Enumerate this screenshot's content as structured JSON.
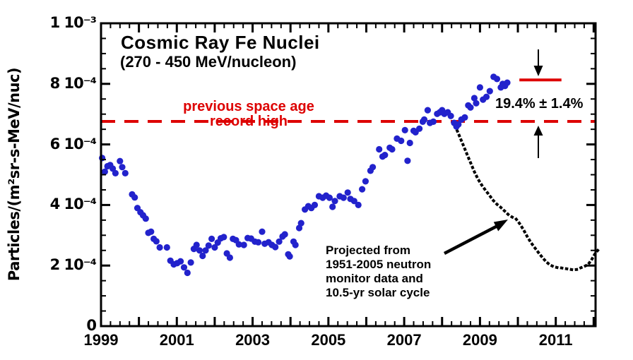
{
  "header": {
    "title": "Cosmic Ray Fe Nuclei",
    "subtitle": "(270 - 450 MeV/nucleon)"
  },
  "annotations": {
    "record_label_line1": "previous space age",
    "record_label_line2": "record high",
    "percent_label": "19.4% ± 1.4%",
    "projection_note_lines": [
      "Projected from",
      "1951-2005 neutron",
      "monitor data and",
      "10.5-yr solar cycle"
    ]
  },
  "colors": {
    "measured_points": "#2222cc",
    "reference_red": "#dd0000",
    "projection_black": "#000000",
    "background": "#ffffff"
  },
  "chart_data": {
    "type": "scatter",
    "title": "Cosmic Ray Fe Nuclei",
    "subtitle": "(270 - 450 MeV/nucleon)",
    "xlabel": "",
    "ylabel": "Particles/(m²sr-s-MeV/nuc)",
    "y_units": "values in 10⁻⁴ particles/(m²·sr·s·MeV/nuc)",
    "xlim": [
      1999,
      2012.05
    ],
    "ylim": [
      0,
      10
    ],
    "grid": false,
    "legend": false,
    "tick_style": "inward ticks on all four sides; x minor every 0.25 yr, major every year; y minor every 0.5, major every 2",
    "x_tick_labels": [
      {
        "year": 1999,
        "label": "1999"
      },
      {
        "year": 2001,
        "label": "2001"
      },
      {
        "year": 2003,
        "label": "2003"
      },
      {
        "year": 2005,
        "label": "2005"
      },
      {
        "year": 2007,
        "label": "2007"
      },
      {
        "year": 2009,
        "label": "2009"
      },
      {
        "year": 2011,
        "label": "2011"
      }
    ],
    "y_ticks": [
      {
        "v": 10,
        "label": "1 10⁻³"
      },
      {
        "v": 8,
        "label": "8 10⁻⁴"
      },
      {
        "v": 6,
        "label": "6 10⁻⁴"
      },
      {
        "v": 4,
        "label": "4 10⁻⁴"
      },
      {
        "v": 2,
        "label": "2 10⁻⁴"
      },
      {
        "v": 0,
        "label": "0"
      }
    ],
    "series": [
      {
        "name": "measured-fe-nuclei-flux",
        "style": "points",
        "color": "#2222cc",
        "marker_radius_px": 4.6,
        "points": [
          [
            1999.03,
            5.55
          ],
          [
            1999.1,
            5.1
          ],
          [
            1999.17,
            5.28
          ],
          [
            1999.24,
            5.32
          ],
          [
            1999.31,
            5.2
          ],
          [
            1999.38,
            5.05
          ],
          [
            1999.5,
            5.45
          ],
          [
            1999.56,
            5.25
          ],
          [
            1999.64,
            5.05
          ],
          [
            1999.82,
            4.35
          ],
          [
            1999.89,
            4.25
          ],
          [
            1999.96,
            3.9
          ],
          [
            2000.04,
            3.76
          ],
          [
            2000.11,
            3.66
          ],
          [
            2000.18,
            3.55
          ],
          [
            2000.25,
            3.08
          ],
          [
            2000.32,
            3.12
          ],
          [
            2000.39,
            2.88
          ],
          [
            2000.46,
            2.8
          ],
          [
            2000.55,
            2.6
          ],
          [
            2000.74,
            2.6
          ],
          [
            2000.83,
            2.16
          ],
          [
            2000.92,
            2.04
          ],
          [
            2001.01,
            2.08
          ],
          [
            2001.1,
            2.14
          ],
          [
            2001.19,
            1.94
          ],
          [
            2001.28,
            1.76
          ],
          [
            2001.37,
            2.1
          ],
          [
            2001.45,
            2.55
          ],
          [
            2001.52,
            2.68
          ],
          [
            2001.6,
            2.5
          ],
          [
            2001.68,
            2.32
          ],
          [
            2001.76,
            2.5
          ],
          [
            2001.84,
            2.66
          ],
          [
            2001.92,
            2.88
          ],
          [
            2002.0,
            2.6
          ],
          [
            2002.08,
            2.76
          ],
          [
            2002.16,
            2.9
          ],
          [
            2002.24,
            2.94
          ],
          [
            2002.32,
            2.4
          ],
          [
            2002.4,
            2.26
          ],
          [
            2002.48,
            2.88
          ],
          [
            2002.56,
            2.84
          ],
          [
            2002.64,
            2.7
          ],
          [
            2002.77,
            2.68
          ],
          [
            2002.87,
            2.91
          ],
          [
            2002.96,
            2.89
          ],
          [
            2003.06,
            2.79
          ],
          [
            2003.15,
            2.77
          ],
          [
            2003.25,
            3.12
          ],
          [
            2003.32,
            2.72
          ],
          [
            2003.42,
            2.77
          ],
          [
            2003.51,
            2.68
          ],
          [
            2003.6,
            2.61
          ],
          [
            2003.7,
            2.79
          ],
          [
            2003.79,
            2.96
          ],
          [
            2003.85,
            3.03
          ],
          [
            2003.94,
            2.37
          ],
          [
            2003.98,
            2.3
          ],
          [
            2004.08,
            2.79
          ],
          [
            2004.13,
            2.68
          ],
          [
            2004.23,
            3.24
          ],
          [
            2004.28,
            3.4
          ],
          [
            2004.38,
            3.85
          ],
          [
            2004.47,
            3.96
          ],
          [
            2004.55,
            3.9
          ],
          [
            2004.64,
            4.0
          ],
          [
            2004.75,
            4.29
          ],
          [
            2004.85,
            4.24
          ],
          [
            2004.94,
            4.31
          ],
          [
            2005.03,
            4.24
          ],
          [
            2005.11,
            3.94
          ],
          [
            2005.17,
            4.13
          ],
          [
            2005.3,
            4.29
          ],
          [
            2005.4,
            4.24
          ],
          [
            2005.51,
            4.41
          ],
          [
            2005.58,
            4.2
          ],
          [
            2005.68,
            4.13
          ],
          [
            2005.79,
            4.0
          ],
          [
            2005.89,
            4.52
          ],
          [
            2005.98,
            4.78
          ],
          [
            2006.11,
            5.13
          ],
          [
            2006.17,
            5.25
          ],
          [
            2006.34,
            5.84
          ],
          [
            2006.43,
            5.6
          ],
          [
            2006.49,
            5.65
          ],
          [
            2006.62,
            5.89
          ],
          [
            2006.68,
            5.84
          ],
          [
            2006.81,
            6.19
          ],
          [
            2006.92,
            6.12
          ],
          [
            2007.02,
            6.47
          ],
          [
            2007.09,
            5.46
          ],
          [
            2007.15,
            6.05
          ],
          [
            2007.25,
            6.45
          ],
          [
            2007.3,
            6.4
          ],
          [
            2007.4,
            6.52
          ],
          [
            2007.49,
            6.75
          ],
          [
            2007.53,
            6.82
          ],
          [
            2007.62,
            7.13
          ],
          [
            2007.68,
            6.71
          ],
          [
            2007.77,
            6.75
          ],
          [
            2007.87,
            7.01
          ],
          [
            2007.94,
            7.06
          ],
          [
            2008.0,
            7.13
          ],
          [
            2008.06,
            7.01
          ],
          [
            2008.15,
            7.06
          ],
          [
            2008.23,
            6.94
          ],
          [
            2008.32,
            6.71
          ],
          [
            2008.38,
            6.59
          ],
          [
            2008.43,
            6.66
          ],
          [
            2008.51,
            6.82
          ],
          [
            2008.6,
            6.89
          ],
          [
            2008.69,
            7.29
          ],
          [
            2008.75,
            7.22
          ],
          [
            2008.85,
            7.53
          ],
          [
            2008.9,
            7.36
          ],
          [
            2009.0,
            7.88
          ],
          [
            2009.08,
            7.48
          ],
          [
            2009.17,
            7.57
          ],
          [
            2009.26,
            7.76
          ],
          [
            2009.36,
            8.23
          ],
          [
            2009.45,
            8.16
          ],
          [
            2009.55,
            7.88
          ],
          [
            2009.6,
            8.0
          ],
          [
            2009.66,
            7.93
          ],
          [
            2009.72,
            8.04
          ]
        ]
      },
      {
        "name": "projection-1951-2005-neutron-monitor",
        "style": "dotted-line",
        "color": "#000000",
        "points": [
          [
            2008.35,
            6.6
          ],
          [
            2008.45,
            6.3
          ],
          [
            2008.55,
            6.0
          ],
          [
            2008.65,
            5.7
          ],
          [
            2008.75,
            5.4
          ],
          [
            2008.85,
            5.1
          ],
          [
            2008.95,
            4.85
          ],
          [
            2009.05,
            4.65
          ],
          [
            2009.15,
            4.48
          ],
          [
            2009.25,
            4.32
          ],
          [
            2009.35,
            4.15
          ],
          [
            2009.45,
            4.02
          ],
          [
            2009.55,
            3.92
          ],
          [
            2009.65,
            3.8
          ],
          [
            2009.75,
            3.68
          ],
          [
            2009.85,
            3.6
          ],
          [
            2009.95,
            3.54
          ],
          [
            2010.05,
            3.38
          ],
          [
            2010.15,
            3.18
          ],
          [
            2010.25,
            2.95
          ],
          [
            2010.35,
            2.75
          ],
          [
            2010.45,
            2.58
          ],
          [
            2010.55,
            2.42
          ],
          [
            2010.65,
            2.26
          ],
          [
            2010.75,
            2.12
          ],
          [
            2010.85,
            2.02
          ],
          [
            2010.95,
            1.96
          ],
          [
            2011.05,
            1.93
          ],
          [
            2011.15,
            1.92
          ],
          [
            2011.25,
            1.9
          ],
          [
            2011.35,
            1.88
          ],
          [
            2011.45,
            1.86
          ],
          [
            2011.55,
            1.87
          ],
          [
            2011.65,
            1.92
          ],
          [
            2011.75,
            1.97
          ],
          [
            2011.85,
            2.03
          ],
          [
            2011.95,
            2.2
          ],
          [
            2012.05,
            2.42
          ],
          [
            2012.15,
            2.56
          ]
        ]
      }
    ],
    "reference_lines": [
      {
        "name": "previous-record-high",
        "style": "dashed",
        "color": "#dd0000",
        "value": 6.76,
        "x_from": 1999,
        "x_to": 2012.05,
        "label": "previous space age record high"
      },
      {
        "name": "new-record-level",
        "style": "solid",
        "color": "#dd0000",
        "value": 8.13,
        "x_from": 2010.04,
        "x_to": 2011.15,
        "label": "19.4% ± 1.4%"
      }
    ]
  }
}
